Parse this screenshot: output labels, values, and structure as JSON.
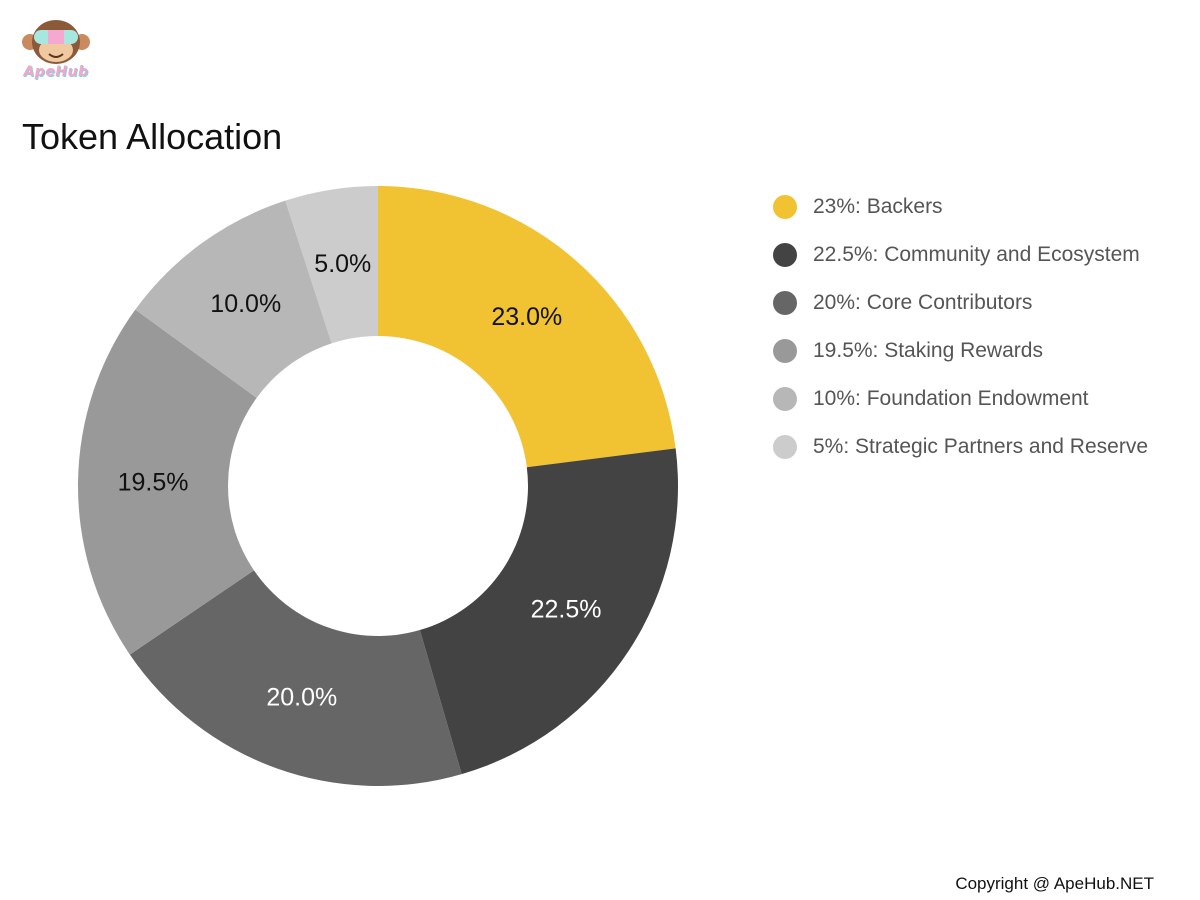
{
  "brand": {
    "logo_text": "ApeHub"
  },
  "chart_data": {
    "type": "pie",
    "variant": "donut",
    "title": "Token Allocation",
    "categories": [
      "Backers",
      "Community and Ecosystem",
      "Core Contributors",
      "Staking Rewards",
      "Foundation Endowment",
      "Strategic Partners and Reserve"
    ],
    "values": [
      23.0,
      22.5,
      20.0,
      19.5,
      10.0,
      5.0
    ],
    "data_labels": [
      "23.0%",
      "22.5%",
      "20.0%",
      "19.5%",
      "10.0%",
      "5.0%"
    ],
    "legend": [
      "23%: Backers",
      "22.5%: Community and Ecosystem",
      "20%: Core Contributors",
      "19.5%: Staking Rewards",
      "10%: Foundation Endowment",
      "5%: Strategic Partners and Reserve"
    ],
    "colors": [
      "#f1c232",
      "#434343",
      "#666666",
      "#999999",
      "#b7b7b7",
      "#cccccc"
    ],
    "label_colors": [
      "#111111",
      "#ffffff",
      "#ffffff",
      "#111111",
      "#111111",
      "#111111"
    ],
    "legend_placement": "right"
  },
  "footer": {
    "copyright": "Copyright @ ApeHub.NET"
  }
}
